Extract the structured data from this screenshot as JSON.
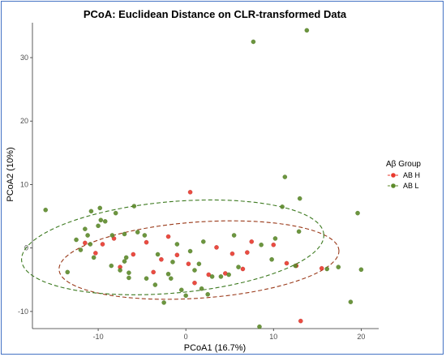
{
  "chart_data": {
    "type": "scatter",
    "title": "PCoA: Euclidean Distance on CLR-transformed Data",
    "xlabel": "PCoA1 (16.7%)",
    "ylabel": "PCoA2 (10%)",
    "xlim": [
      -17.5,
      22
    ],
    "ylim": [
      -12.7,
      35.5
    ],
    "xticks": [
      -10,
      0,
      10,
      20
    ],
    "yticks": [
      -10,
      0,
      10,
      20,
      30
    ],
    "grid": false,
    "legend": {
      "title": "Aβ Group",
      "placement": "right",
      "entries": [
        {
          "label": "AB H",
          "color": "#e8392d"
        },
        {
          "label": "AB L",
          "color": "#5c8a2a"
        }
      ]
    },
    "series": [
      {
        "name": "AB H",
        "color": "#e8392d",
        "points": [
          [
            -11.5,
            0.8
          ],
          [
            -10.3,
            -0.8
          ],
          [
            -8.2,
            1.5
          ],
          [
            -7.5,
            -3.0
          ],
          [
            -6.0,
            -1.0
          ],
          [
            -3.7,
            -3.8
          ],
          [
            -2.8,
            -1.8
          ],
          [
            -2.0,
            1.8
          ],
          [
            -1.0,
            -1.1
          ],
          [
            0.3,
            -2.5
          ],
          [
            0.5,
            8.8
          ],
          [
            1.0,
            -5.5
          ],
          [
            2.6,
            -4.2
          ],
          [
            3.5,
            0.1
          ],
          [
            4.5,
            -4.0
          ],
          [
            5.3,
            -0.9
          ],
          [
            6.5,
            -3.3
          ],
          [
            7.0,
            -0.7
          ],
          [
            7.5,
            1.0
          ],
          [
            10.0,
            0.5
          ],
          [
            11.5,
            -2.4
          ],
          [
            12.6,
            -2.8
          ],
          [
            13.1,
            -11.5
          ],
          [
            15.5,
            -3.2
          ],
          [
            -9.5,
            0.6
          ],
          [
            -4.5,
            0.9
          ]
        ]
      },
      {
        "name": "AB L",
        "color": "#5c8a2a",
        "points": [
          [
            -16.0,
            6.0
          ],
          [
            -13.5,
            -3.8
          ],
          [
            -12.5,
            1.3
          ],
          [
            -12.0,
            -0.3
          ],
          [
            -11.5,
            3.0
          ],
          [
            -11.2,
            2.0
          ],
          [
            -10.9,
            0.6
          ],
          [
            -10.8,
            5.8
          ],
          [
            -10.5,
            -1.5
          ],
          [
            -10.0,
            3.5
          ],
          [
            -9.7,
            4.4
          ],
          [
            -9.2,
            4.2
          ],
          [
            -8.5,
            -2.8
          ],
          [
            -8.4,
            2.0
          ],
          [
            -8.0,
            5.5
          ],
          [
            -7.5,
            -3.5
          ],
          [
            -7.0,
            2.2
          ],
          [
            -6.8,
            -1.5
          ],
          [
            -6.5,
            -4.7
          ],
          [
            -5.9,
            6.6
          ],
          [
            -5.5,
            2.5
          ],
          [
            -4.7,
            2.0
          ],
          [
            -4.5,
            -4.8
          ],
          [
            -3.5,
            -5.8
          ],
          [
            -3.2,
            -1.0
          ],
          [
            -2.5,
            -8.6
          ],
          [
            -2.0,
            -4.1
          ],
          [
            -1.5,
            -2.2
          ],
          [
            -1.0,
            0.6
          ],
          [
            -0.5,
            -6.6
          ],
          [
            0.0,
            -7.5
          ],
          [
            0.5,
            -0.5
          ],
          [
            1.0,
            -3.5
          ],
          [
            1.5,
            -2.5
          ],
          [
            1.8,
            -6.4
          ],
          [
            2.5,
            -7.3
          ],
          [
            3.0,
            -4.5
          ],
          [
            4.0,
            -4.5
          ],
          [
            4.9,
            -4.2
          ],
          [
            5.5,
            2.0
          ],
          [
            6.0,
            -3.0
          ],
          [
            8.4,
            -12.4
          ],
          [
            8.6,
            0.5
          ],
          [
            9.8,
            -1.8
          ],
          [
            10.2,
            1.5
          ],
          [
            11.0,
            6.5
          ],
          [
            11.3,
            11.2
          ],
          [
            12.5,
            -2.8
          ],
          [
            12.9,
            2.6
          ],
          [
            13.0,
            7.8
          ],
          [
            16.1,
            -3.3
          ],
          [
            17.4,
            -3.0
          ],
          [
            18.8,
            -8.5
          ],
          [
            19.6,
            5.5
          ],
          [
            20.0,
            -3.4
          ],
          [
            7.7,
            32.5
          ],
          [
            13.8,
            34.3
          ],
          [
            -9.8,
            6.3
          ],
          [
            -7.0,
            -2.1
          ],
          [
            2.0,
            1.0
          ],
          [
            -1.7,
            -4.8
          ],
          [
            -6.5,
            -3.9
          ]
        ]
      }
    ],
    "ellipses": [
      {
        "group": "AB H",
        "color": "#9a3a1a",
        "cx": 1.5,
        "cy": -1.9,
        "rx": 16.0,
        "ry": 6.0,
        "rotate_deg": -4
      },
      {
        "group": "AB L",
        "color": "#3d7a20",
        "cx": -1.5,
        "cy": 0.1,
        "rx": 17.3,
        "ry": 7.2,
        "rotate_deg": -5
      }
    ]
  }
}
